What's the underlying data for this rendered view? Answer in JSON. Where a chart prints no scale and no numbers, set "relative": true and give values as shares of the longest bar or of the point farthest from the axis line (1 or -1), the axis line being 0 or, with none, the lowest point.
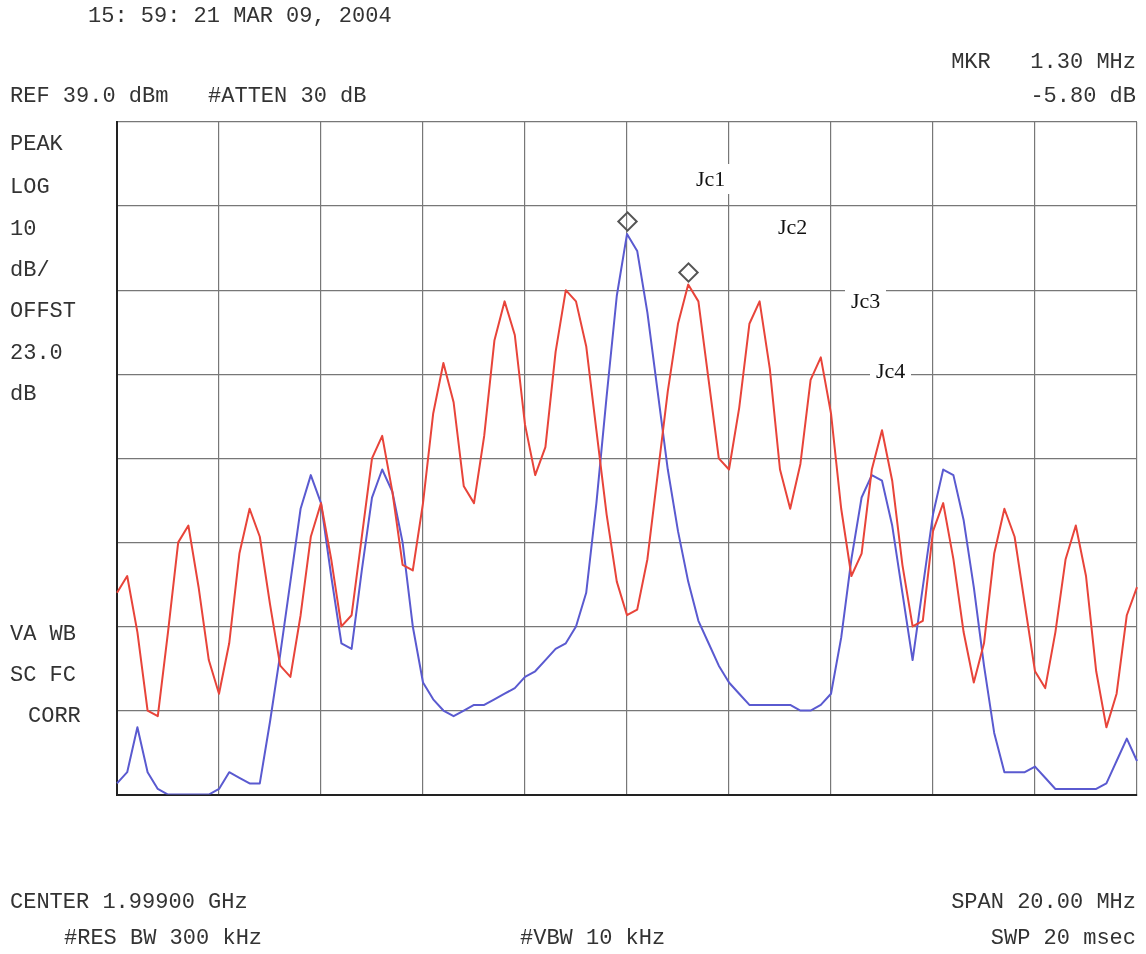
{
  "chart_data": {
    "type": "line",
    "relative": true,
    "grid": true,
    "legend": false,
    "marker": "none",
    "categories": [
      null,
      null,
      null,
      null,
      null,
      null,
      null,
      null,
      null,
      null,
      null,
      null,
      null,
      null,
      null,
      null,
      null,
      null,
      null,
      null,
      null,
      null,
      null,
      null,
      null,
      null,
      null,
      null,
      null,
      null,
      null,
      null,
      null,
      null,
      null,
      null,
      null,
      null,
      null,
      null,
      null,
      null,
      null,
      null,
      null,
      null,
      null,
      null,
      null,
      null,
      null,
      null,
      null,
      null,
      null,
      null,
      null,
      null,
      null,
      null,
      null,
      null,
      null,
      null,
      null,
      null,
      null,
      null,
      null,
      null,
      null,
      null,
      null,
      null,
      null,
      null,
      null,
      null,
      null,
      null,
      null,
      null,
      null,
      null,
      null,
      null,
      null,
      null,
      null,
      null,
      null,
      null,
      null,
      null,
      null,
      null,
      null,
      null,
      null,
      null,
      null
    ],
    "series": [
      {
        "color": "#e8443a",
        "values": [
          0.36,
          0.39,
          0.29,
          0.15,
          0.14,
          0.29,
          0.45,
          0.48,
          0.37,
          0.24,
          0.18,
          0.27,
          0.43,
          0.51,
          0.46,
          0.34,
          0.23,
          0.21,
          0.32,
          0.46,
          0.52,
          0.42,
          0.3,
          0.32,
          0.46,
          0.6,
          0.64,
          0.54,
          0.41,
          0.4,
          0.52,
          0.68,
          0.77,
          0.7,
          0.55,
          0.52,
          0.64,
          0.81,
          0.88,
          0.82,
          0.66,
          0.57,
          0.62,
          0.79,
          0.9,
          0.88,
          0.8,
          0.65,
          0.5,
          0.38,
          0.32,
          0.33,
          0.42,
          0.57,
          0.72,
          0.84,
          0.91,
          0.88,
          0.74,
          0.6,
          0.58,
          0.69,
          0.84,
          0.88,
          0.76,
          0.58,
          0.51,
          0.59,
          0.74,
          0.78,
          0.68,
          0.51,
          0.39,
          0.43,
          0.58,
          0.65,
          0.56,
          0.41,
          0.3,
          0.31,
          0.47,
          0.52,
          0.42,
          0.29,
          0.2,
          0.27,
          0.43,
          0.51,
          0.46,
          0.34,
          0.22,
          0.19,
          0.29,
          0.42,
          0.48,
          0.39,
          0.22,
          0.12,
          0.18,
          0.32,
          0.37
        ]
      },
      {
        "color": "#5a5ad0",
        "values": [
          0.02,
          0.04,
          0.12,
          0.04,
          0.01,
          0.0,
          0.0,
          0,
          0,
          0,
          0.01,
          0.04,
          0.03,
          0.02,
          0.02,
          0.13,
          0.25,
          0.38,
          0.51,
          0.57,
          0.52,
          0.39,
          0.27,
          0.26,
          0.4,
          0.53,
          0.58,
          0.54,
          0.45,
          0.3,
          0.2,
          0.17,
          0.15,
          0.14,
          0.15,
          0.16,
          0.16,
          0.17,
          0.18,
          0.19,
          0.21,
          0.22,
          0.24,
          0.26,
          0.27,
          0.3,
          0.36,
          0.52,
          0.71,
          0.89,
          1,
          0.97,
          0.86,
          0.72,
          0.58,
          0.47,
          0.38,
          0.31,
          0.27,
          0.23,
          0.2,
          0.18,
          0.16,
          0.16,
          0.16,
          0.16,
          0.16,
          0.15,
          0.15,
          0.16,
          0.18,
          0.28,
          0.42,
          0.53,
          0.57,
          0.56,
          0.48,
          0.36,
          0.24,
          0.37,
          0.5,
          0.58,
          0.57,
          0.49,
          0.37,
          0.23,
          0.11,
          0.04,
          0.04,
          0.04,
          0.05,
          0.03,
          0.01,
          0.01,
          0.01,
          0.01,
          0.01,
          0.02,
          0.06,
          0.1,
          0.06
        ]
      }
    ],
    "annotations": [
      "15: 59: 21 MAR 09, 2004",
      "MKR   1.30 MHz",
      "-5.80 dB",
      "REF 39.0 dBm   #ATTEN 30 dB",
      "PEAK",
      "LOG",
      "10",
      "dB/",
      "OFFST",
      "23.0",
      "dB",
      "VA WB",
      "SC FC",
      "CORR",
      "CENTER 1.99900 GHz",
      "SPAN 20.00 MHz",
      "#RES BW 300 kHz",
      "#VBW 10 kHz",
      "SWP 20 msec",
      "Jc1",
      "Jc2",
      "Jc3",
      "Jc4"
    ]
  }
}
